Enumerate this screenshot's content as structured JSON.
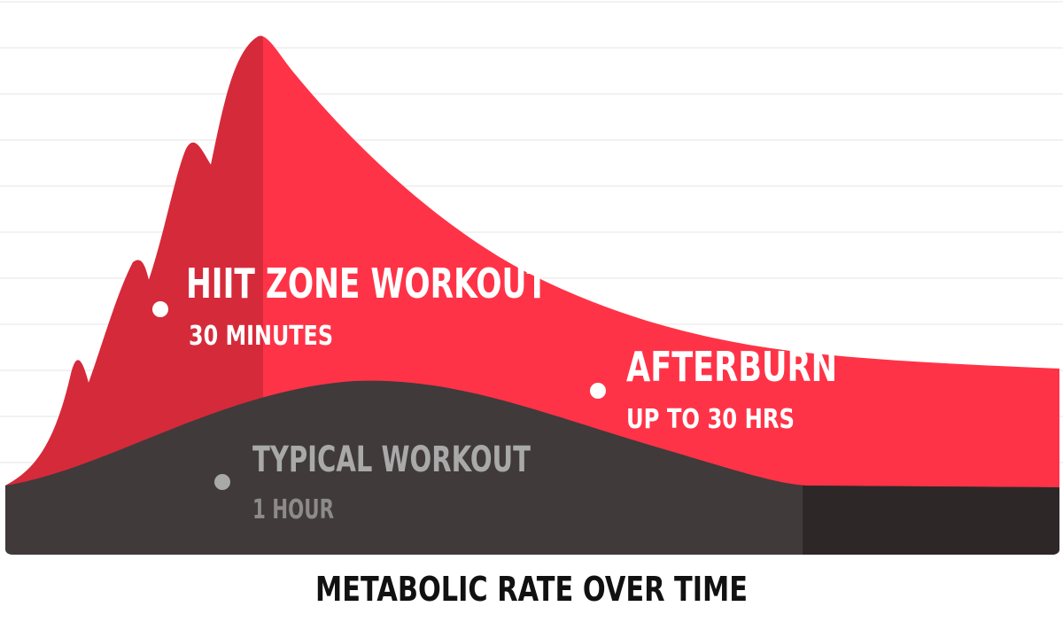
{
  "chart_data": {
    "type": "area",
    "title": "",
    "xlabel": "METABOLIC RATE OVER TIME",
    "ylabel": "",
    "grid": true,
    "series": [
      {
        "name": "HIIT ZONE WORKOUT",
        "duration_label": "30 MINUTES",
        "color": "#ff3347",
        "workout_color": "#d52a3a"
      },
      {
        "name": "TYPICAL WORKOUT",
        "duration_label": "1 HOUR",
        "color": "#403a3b",
        "tail_color": "#2e2728"
      }
    ],
    "annotations": [
      {
        "label": "AFTERBURN",
        "sublabel": "UP TO 30 HRS"
      }
    ]
  },
  "colors": {
    "background": "#ffffff",
    "grid": "#ededed",
    "label": "#ffffff",
    "muted_label": "#a9a9a9",
    "caption": "#111111"
  }
}
